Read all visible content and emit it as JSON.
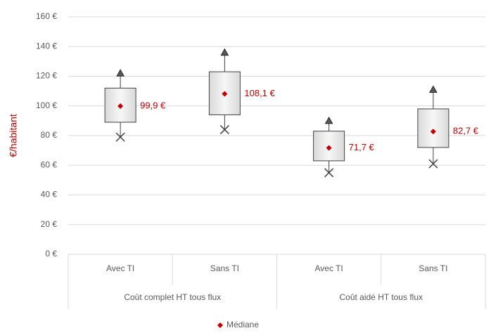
{
  "chart_data": {
    "type": "box",
    "y_label": "€/habitant",
    "ylim": [
      0,
      160
    ],
    "yticks": [
      {
        "value": 0,
        "label": "0 €"
      },
      {
        "value": 20,
        "label": "20 €"
      },
      {
        "value": 40,
        "label": "40 €"
      },
      {
        "value": 60,
        "label": "60 €"
      },
      {
        "value": 80,
        "label": "80 €"
      },
      {
        "value": 100,
        "label": "100 €"
      },
      {
        "value": 120,
        "label": "120 €"
      },
      {
        "value": 140,
        "label": "140 €"
      },
      {
        "value": 160,
        "label": "160 €"
      }
    ],
    "grid": true,
    "categories": [
      "Avec TI",
      "Sans TI",
      "Avec TI",
      "Sans TI"
    ],
    "groups": [
      "Coût complet HT tous flux",
      "Coût aidé HT tous flux"
    ],
    "min": [
      79,
      84,
      55,
      61
    ],
    "q1": [
      89,
      94,
      63,
      72
    ],
    "q3": [
      112,
      123,
      83,
      98
    ],
    "max": [
      122,
      136,
      90,
      111
    ],
    "series": [
      {
        "name": "Médiane",
        "color": "#c00000",
        "values": [
          99.9,
          108.1,
          71.7,
          82.7
        ],
        "value_labels": [
          "99,9 €",
          "108,1 €",
          "71,7 €",
          "82,7 €"
        ]
      }
    ],
    "legend": "bottom"
  }
}
